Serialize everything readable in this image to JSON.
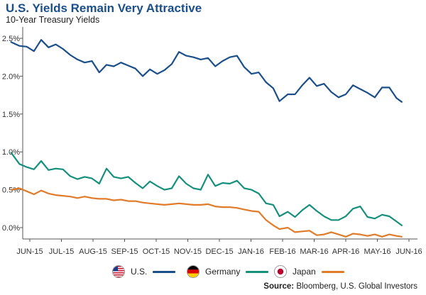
{
  "header": {
    "title": "U.S. Yields Remain Very Attractive",
    "subtitle": "10-Year Treasury Yields"
  },
  "source": {
    "label": "Source:",
    "text": "Bloomberg, U.S. Global Investors"
  },
  "colors": {
    "us": "#1b4f8a",
    "germany": "#16907d",
    "japan": "#e07b2a",
    "title": "#1b4f8a"
  },
  "legend": [
    {
      "name": "U.S.",
      "flag_icon": "us-flag-icon",
      "color": "#1b4f8a"
    },
    {
      "name": "Germany",
      "flag_icon": "germany-flag-icon",
      "color": "#16907d"
    },
    {
      "name": "Japan",
      "flag_icon": "japan-flag-icon",
      "color": "#e07b2a"
    }
  ],
  "chart_data": {
    "type": "line",
    "title": "U.S. Yields Remain Very Attractive",
    "subtitle": "10-Year Treasury Yields",
    "xlabel": "",
    "ylabel": "",
    "x_ticks": [
      "JUN-15",
      "JUL-15",
      "AUG-15",
      "SEP-15",
      "OCT-15",
      "NOV-15",
      "DEC-15",
      "JAN-16",
      "FEB-16",
      "MAR-16",
      "APR-16",
      "MAY-16",
      "JUN-16"
    ],
    "y_ticks": [
      "0.0%",
      "0.5%",
      "1.0%",
      "1.5%",
      "2.0%",
      "2.5%"
    ],
    "ylim": [
      -0.15,
      2.65
    ],
    "grid": false,
    "legend_position": "bottom",
    "series": [
      {
        "name": "U.S.",
        "color": "#1b4f8a",
        "points": [
          [
            "2015-05-28",
            2.45
          ],
          [
            "2015-06-05",
            2.4
          ],
          [
            "2015-06-12",
            2.39
          ],
          [
            "2015-06-19",
            2.33
          ],
          [
            "2015-06-26",
            2.48
          ],
          [
            "2015-07-03",
            2.38
          ],
          [
            "2015-07-10",
            2.42
          ],
          [
            "2015-07-17",
            2.36
          ],
          [
            "2015-07-24",
            2.28
          ],
          [
            "2015-07-31",
            2.22
          ],
          [
            "2015-08-07",
            2.18
          ],
          [
            "2015-08-14",
            2.2
          ],
          [
            "2015-08-21",
            2.05
          ],
          [
            "2015-08-28",
            2.15
          ],
          [
            "2015-09-04",
            2.13
          ],
          [
            "2015-09-11",
            2.18
          ],
          [
            "2015-09-18",
            2.14
          ],
          [
            "2015-09-25",
            2.1
          ],
          [
            "2015-10-02",
            2.0
          ],
          [
            "2015-10-09",
            2.09
          ],
          [
            "2015-10-16",
            2.03
          ],
          [
            "2015-10-23",
            2.08
          ],
          [
            "2015-10-30",
            2.16
          ],
          [
            "2015-11-06",
            2.32
          ],
          [
            "2015-11-13",
            2.27
          ],
          [
            "2015-11-20",
            2.25
          ],
          [
            "2015-11-27",
            2.22
          ],
          [
            "2015-12-04",
            2.24
          ],
          [
            "2015-12-11",
            2.13
          ],
          [
            "2015-12-18",
            2.2
          ],
          [
            "2015-12-25",
            2.25
          ],
          [
            "2016-01-01",
            2.27
          ],
          [
            "2016-01-08",
            2.12
          ],
          [
            "2016-01-15",
            2.03
          ],
          [
            "2016-01-22",
            2.05
          ],
          [
            "2016-01-29",
            1.92
          ],
          [
            "2016-02-05",
            1.84
          ],
          [
            "2016-02-11",
            1.67
          ],
          [
            "2016-02-19",
            1.76
          ],
          [
            "2016-02-26",
            1.76
          ],
          [
            "2016-03-04",
            1.88
          ],
          [
            "2016-03-11",
            1.98
          ],
          [
            "2016-03-18",
            1.87
          ],
          [
            "2016-03-25",
            1.9
          ],
          [
            "2016-04-01",
            1.79
          ],
          [
            "2016-04-08",
            1.72
          ],
          [
            "2016-04-15",
            1.76
          ],
          [
            "2016-04-22",
            1.88
          ],
          [
            "2016-04-29",
            1.83
          ],
          [
            "2016-05-06",
            1.78
          ],
          [
            "2016-05-13",
            1.72
          ],
          [
            "2016-05-20",
            1.85
          ],
          [
            "2016-05-27",
            1.85
          ],
          [
            "2016-06-03",
            1.71
          ],
          [
            "2016-06-08",
            1.66
          ]
        ]
      },
      {
        "name": "Germany",
        "color": "#16907d",
        "points": [
          [
            "2015-05-28",
            0.99
          ],
          [
            "2015-06-05",
            0.84
          ],
          [
            "2015-06-12",
            0.8
          ],
          [
            "2015-06-19",
            0.77
          ],
          [
            "2015-06-26",
            0.88
          ],
          [
            "2015-07-03",
            0.76
          ],
          [
            "2015-07-10",
            0.78
          ],
          [
            "2015-07-17",
            0.77
          ],
          [
            "2015-07-24",
            0.68
          ],
          [
            "2015-07-31",
            0.64
          ],
          [
            "2015-08-07",
            0.67
          ],
          [
            "2015-08-14",
            0.65
          ],
          [
            "2015-08-21",
            0.58
          ],
          [
            "2015-08-28",
            0.78
          ],
          [
            "2015-09-04",
            0.67
          ],
          [
            "2015-09-11",
            0.65
          ],
          [
            "2015-09-18",
            0.67
          ],
          [
            "2015-09-25",
            0.59
          ],
          [
            "2015-10-02",
            0.52
          ],
          [
            "2015-10-09",
            0.61
          ],
          [
            "2015-10-16",
            0.55
          ],
          [
            "2015-10-23",
            0.5
          ],
          [
            "2015-10-30",
            0.52
          ],
          [
            "2015-11-06",
            0.68
          ],
          [
            "2015-11-13",
            0.58
          ],
          [
            "2015-11-20",
            0.52
          ],
          [
            "2015-11-27",
            0.5
          ],
          [
            "2015-12-04",
            0.7
          ],
          [
            "2015-12-11",
            0.55
          ],
          [
            "2015-12-18",
            0.59
          ],
          [
            "2015-12-25",
            0.58
          ],
          [
            "2016-01-01",
            0.62
          ],
          [
            "2016-01-08",
            0.52
          ],
          [
            "2016-01-15",
            0.5
          ],
          [
            "2016-01-22",
            0.45
          ],
          [
            "2016-01-29",
            0.32
          ],
          [
            "2016-02-05",
            0.3
          ],
          [
            "2016-02-11",
            0.15
          ],
          [
            "2016-02-19",
            0.21
          ],
          [
            "2016-02-26",
            0.14
          ],
          [
            "2016-03-04",
            0.23
          ],
          [
            "2016-03-11",
            0.3
          ],
          [
            "2016-03-18",
            0.22
          ],
          [
            "2016-03-25",
            0.15
          ],
          [
            "2016-04-01",
            0.1
          ],
          [
            "2016-04-08",
            0.1
          ],
          [
            "2016-04-15",
            0.15
          ],
          [
            "2016-04-22",
            0.25
          ],
          [
            "2016-04-29",
            0.28
          ],
          [
            "2016-05-06",
            0.14
          ],
          [
            "2016-05-13",
            0.12
          ],
          [
            "2016-05-20",
            0.17
          ],
          [
            "2016-05-27",
            0.15
          ],
          [
            "2016-06-03",
            0.08
          ],
          [
            "2016-06-08",
            0.03
          ]
        ]
      },
      {
        "name": "Japan",
        "color": "#e07b2a",
        "points": [
          [
            "2015-05-28",
            0.5
          ],
          [
            "2015-06-05",
            0.52
          ],
          [
            "2015-06-12",
            0.48
          ],
          [
            "2015-06-19",
            0.44
          ],
          [
            "2015-06-26",
            0.49
          ],
          [
            "2015-07-03",
            0.45
          ],
          [
            "2015-07-10",
            0.43
          ],
          [
            "2015-07-17",
            0.42
          ],
          [
            "2015-07-24",
            0.41
          ],
          [
            "2015-07-31",
            0.39
          ],
          [
            "2015-08-07",
            0.41
          ],
          [
            "2015-08-14",
            0.39
          ],
          [
            "2015-08-21",
            0.38
          ],
          [
            "2015-08-28",
            0.38
          ],
          [
            "2015-09-04",
            0.36
          ],
          [
            "2015-09-11",
            0.37
          ],
          [
            "2015-09-18",
            0.35
          ],
          [
            "2015-09-25",
            0.35
          ],
          [
            "2015-10-02",
            0.33
          ],
          [
            "2015-10-09",
            0.32
          ],
          [
            "2015-10-16",
            0.31
          ],
          [
            "2015-10-23",
            0.3
          ],
          [
            "2015-10-30",
            0.31
          ],
          [
            "2015-11-06",
            0.32
          ],
          [
            "2015-11-13",
            0.31
          ],
          [
            "2015-11-20",
            0.3
          ],
          [
            "2015-11-27",
            0.3
          ],
          [
            "2015-12-04",
            0.31
          ],
          [
            "2015-12-11",
            0.28
          ],
          [
            "2015-12-18",
            0.27
          ],
          [
            "2015-12-25",
            0.27
          ],
          [
            "2016-01-01",
            0.26
          ],
          [
            "2016-01-08",
            0.24
          ],
          [
            "2016-01-15",
            0.22
          ],
          [
            "2016-01-22",
            0.21
          ],
          [
            "2016-01-29",
            0.1
          ],
          [
            "2016-02-05",
            0.03
          ],
          [
            "2016-02-11",
            -0.02
          ],
          [
            "2016-02-19",
            0.0
          ],
          [
            "2016-02-26",
            -0.06
          ],
          [
            "2016-03-04",
            -0.05
          ],
          [
            "2016-03-11",
            -0.04
          ],
          [
            "2016-03-18",
            -0.1
          ],
          [
            "2016-03-25",
            -0.09
          ],
          [
            "2016-04-01",
            -0.06
          ],
          [
            "2016-04-08",
            -0.09
          ],
          [
            "2016-04-15",
            -0.12
          ],
          [
            "2016-04-22",
            -0.08
          ],
          [
            "2016-04-29",
            -0.09
          ],
          [
            "2016-05-06",
            -0.11
          ],
          [
            "2016-05-13",
            -0.09
          ],
          [
            "2016-05-20",
            -0.12
          ],
          [
            "2016-05-27",
            -0.09
          ],
          [
            "2016-06-03",
            -0.11
          ],
          [
            "2016-06-08",
            -0.12
          ]
        ]
      }
    ]
  }
}
